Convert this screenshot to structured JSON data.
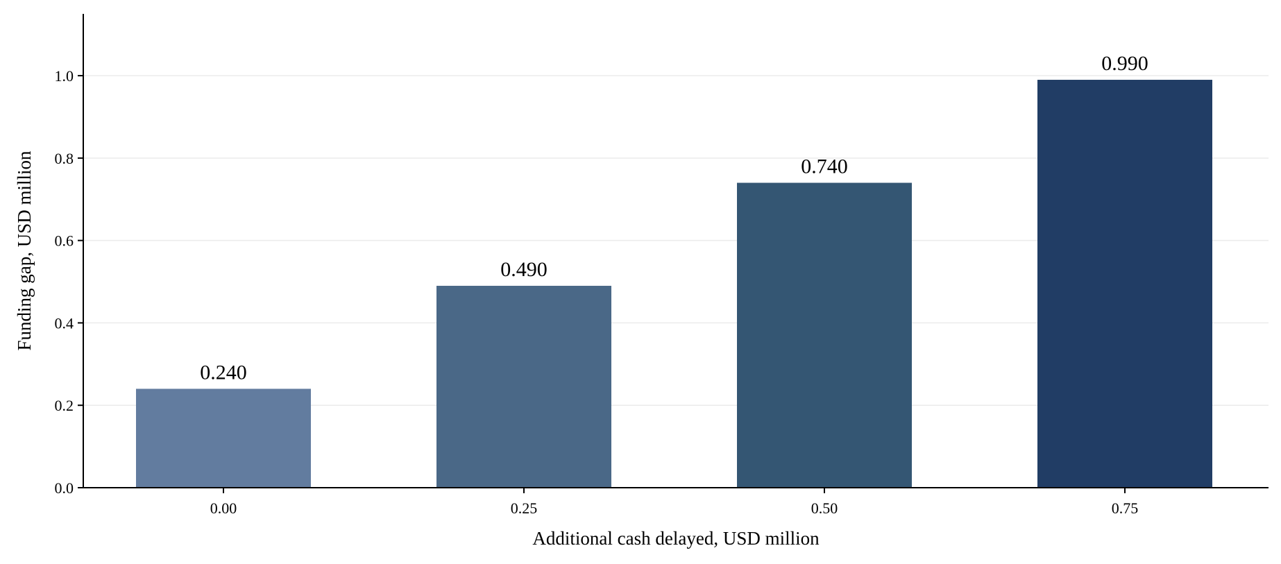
{
  "chart_data": {
    "type": "bar",
    "categories": [
      "0.00",
      "0.25",
      "0.50",
      "0.75"
    ],
    "values": [
      0.24,
      0.49,
      0.74,
      0.99
    ],
    "value_labels": [
      "0.240",
      "0.490",
      "0.740",
      "0.990"
    ],
    "bar_colors": [
      "#627c9f",
      "#4a6887",
      "#345673",
      "#213d65"
    ],
    "title": "",
    "xlabel": "Additional cash delayed, USD million",
    "ylabel": "Funding gap, USD million",
    "ylim": [
      0,
      1.15
    ],
    "yticks": [
      0.0,
      0.2,
      0.4,
      0.6,
      0.8,
      1.0
    ],
    "ytick_labels": [
      "0.0",
      "0.2",
      "0.4",
      "0.6",
      "0.8",
      "1.0"
    ],
    "grid": "horizontal",
    "legend": "none"
  }
}
